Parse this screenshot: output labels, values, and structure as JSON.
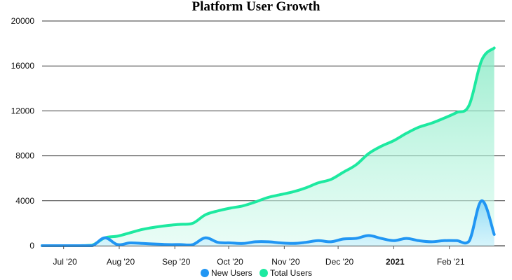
{
  "chart_data": {
    "type": "area",
    "title": "Platform User Growth",
    "xlabel": "",
    "ylabel": "",
    "ylim": [
      0,
      20000
    ],
    "xlim": [
      "2020-06-19",
      "2021-03-04"
    ],
    "y_ticks": [
      0,
      4000,
      8000,
      12000,
      16000,
      20000
    ],
    "y_tick_labels": [
      "0",
      "4000",
      "8000",
      "12000",
      "16000",
      "20000"
    ],
    "x_ticks": [
      {
        "date": "2020-07-01",
        "label": "Jul '20",
        "bold": false
      },
      {
        "date": "2020-08-01",
        "label": "Aug '20",
        "bold": false
      },
      {
        "date": "2020-09-01",
        "label": "Sep '20",
        "bold": false
      },
      {
        "date": "2020-10-01",
        "label": "Oct '20",
        "bold": false
      },
      {
        "date": "2020-11-01",
        "label": "Nov '20",
        "bold": false
      },
      {
        "date": "2020-12-01",
        "label": "Dec '20",
        "bold": false
      },
      {
        "date": "2021-01-01",
        "label": "2021",
        "bold": true
      },
      {
        "date": "2021-02-01",
        "label": "Feb '21",
        "bold": false
      }
    ],
    "grid": true,
    "legend_position": "bottom",
    "series": [
      {
        "name": "New Users",
        "color": "#2196f3",
        "fill": "#b3e5fc",
        "points": [
          [
            "2020-06-19",
            0
          ],
          [
            "2020-06-26",
            0
          ],
          [
            "2020-07-03",
            0
          ],
          [
            "2020-07-10",
            0
          ],
          [
            "2020-07-17",
            0
          ],
          [
            "2020-07-24",
            700
          ],
          [
            "2020-07-31",
            100
          ],
          [
            "2020-08-07",
            250
          ],
          [
            "2020-08-14",
            200
          ],
          [
            "2020-08-21",
            150
          ],
          [
            "2020-08-28",
            100
          ],
          [
            "2020-09-04",
            100
          ],
          [
            "2020-09-11",
            100
          ],
          [
            "2020-09-18",
            700
          ],
          [
            "2020-09-25",
            300
          ],
          [
            "2020-10-02",
            250
          ],
          [
            "2020-10-09",
            200
          ],
          [
            "2020-10-16",
            350
          ],
          [
            "2020-10-23",
            350
          ],
          [
            "2020-10-30",
            250
          ],
          [
            "2020-11-06",
            200
          ],
          [
            "2020-11-13",
            300
          ],
          [
            "2020-11-20",
            450
          ],
          [
            "2020-11-27",
            350
          ],
          [
            "2020-12-04",
            600
          ],
          [
            "2020-12-11",
            650
          ],
          [
            "2020-12-18",
            900
          ],
          [
            "2020-12-25",
            650
          ],
          [
            "2021-01-01",
            450
          ],
          [
            "2021-01-08",
            650
          ],
          [
            "2021-01-15",
            450
          ],
          [
            "2021-01-22",
            350
          ],
          [
            "2021-01-29",
            450
          ],
          [
            "2021-02-05",
            450
          ],
          [
            "2021-02-12",
            400
          ],
          [
            "2021-02-19",
            4000
          ],
          [
            "2021-02-26",
            1000
          ]
        ]
      },
      {
        "name": "Total Users",
        "color": "#1de9a0",
        "fill": "#a7f3d6",
        "points": [
          [
            "2020-06-19",
            0
          ],
          [
            "2020-06-26",
            0
          ],
          [
            "2020-07-03",
            0
          ],
          [
            "2020-07-10",
            0
          ],
          [
            "2020-07-17",
            50
          ],
          [
            "2020-07-24",
            700
          ],
          [
            "2020-07-31",
            850
          ],
          [
            "2020-08-07",
            1150
          ],
          [
            "2020-08-14",
            1450
          ],
          [
            "2020-08-21",
            1650
          ],
          [
            "2020-08-28",
            1800
          ],
          [
            "2020-09-04",
            1900
          ],
          [
            "2020-09-11",
            2000
          ],
          [
            "2020-09-18",
            2750
          ],
          [
            "2020-09-25",
            3100
          ],
          [
            "2020-10-02",
            3350
          ],
          [
            "2020-10-09",
            3550
          ],
          [
            "2020-10-16",
            3900
          ],
          [
            "2020-10-23",
            4300
          ],
          [
            "2020-10-30",
            4550
          ],
          [
            "2020-11-06",
            4800
          ],
          [
            "2020-11-13",
            5150
          ],
          [
            "2020-11-20",
            5600
          ],
          [
            "2020-11-27",
            5900
          ],
          [
            "2020-12-04",
            6550
          ],
          [
            "2020-12-11",
            7200
          ],
          [
            "2020-12-18",
            8200
          ],
          [
            "2020-12-25",
            8850
          ],
          [
            "2021-01-01",
            9350
          ],
          [
            "2021-01-08",
            10000
          ],
          [
            "2021-01-15",
            10550
          ],
          [
            "2021-01-22",
            10900
          ],
          [
            "2021-01-29",
            11350
          ],
          [
            "2021-02-05",
            11850
          ],
          [
            "2021-02-12",
            12500
          ],
          [
            "2021-02-19",
            16500
          ],
          [
            "2021-02-26",
            17600
          ]
        ]
      }
    ]
  }
}
